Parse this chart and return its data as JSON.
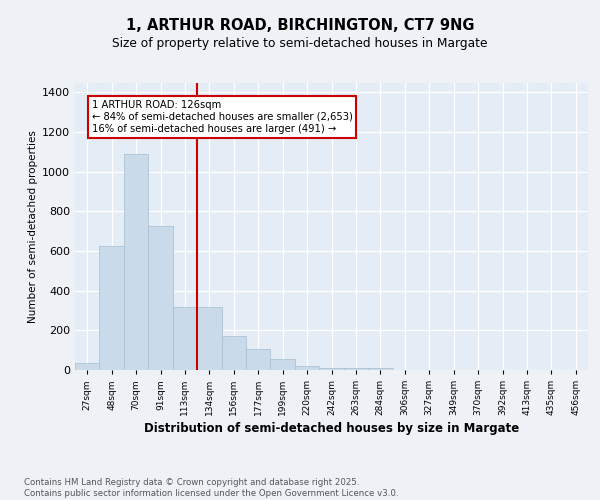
{
  "title1": "1, ARTHUR ROAD, BIRCHINGTON, CT7 9NG",
  "title2": "Size of property relative to semi-detached houses in Margate",
  "xlabel": "Distribution of semi-detached houses by size in Margate",
  "ylabel": "Number of semi-detached properties",
  "categories": [
    "27sqm",
    "48sqm",
    "70sqm",
    "91sqm",
    "113sqm",
    "134sqm",
    "156sqm",
    "177sqm",
    "199sqm",
    "220sqm",
    "242sqm",
    "263sqm",
    "284sqm",
    "306sqm",
    "327sqm",
    "349sqm",
    "370sqm",
    "392sqm",
    "413sqm",
    "435sqm",
    "456sqm"
  ],
  "values": [
    35,
    625,
    1090,
    725,
    320,
    320,
    170,
    105,
    55,
    20,
    12,
    10,
    10,
    0,
    0,
    0,
    0,
    0,
    0,
    0,
    0
  ],
  "bar_color": "#c9daea",
  "bar_edgecolor": "#a8bece",
  "bar_linewidth": 0.5,
  "vline_color": "#cc0000",
  "annotation_text": "1 ARTHUR ROAD: 126sqm\n← 84% of semi-detached houses are smaller (2,653)\n16% of semi-detached houses are larger (491) →",
  "ylim": [
    0,
    1450
  ],
  "yticks": [
    0,
    200,
    400,
    600,
    800,
    1000,
    1200,
    1400
  ],
  "footnote": "Contains HM Land Registry data © Crown copyright and database right 2025.\nContains public sector information licensed under the Open Government Licence v3.0.",
  "bg_color": "#eef2f7",
  "plot_bg_color": "#e4ecf5"
}
